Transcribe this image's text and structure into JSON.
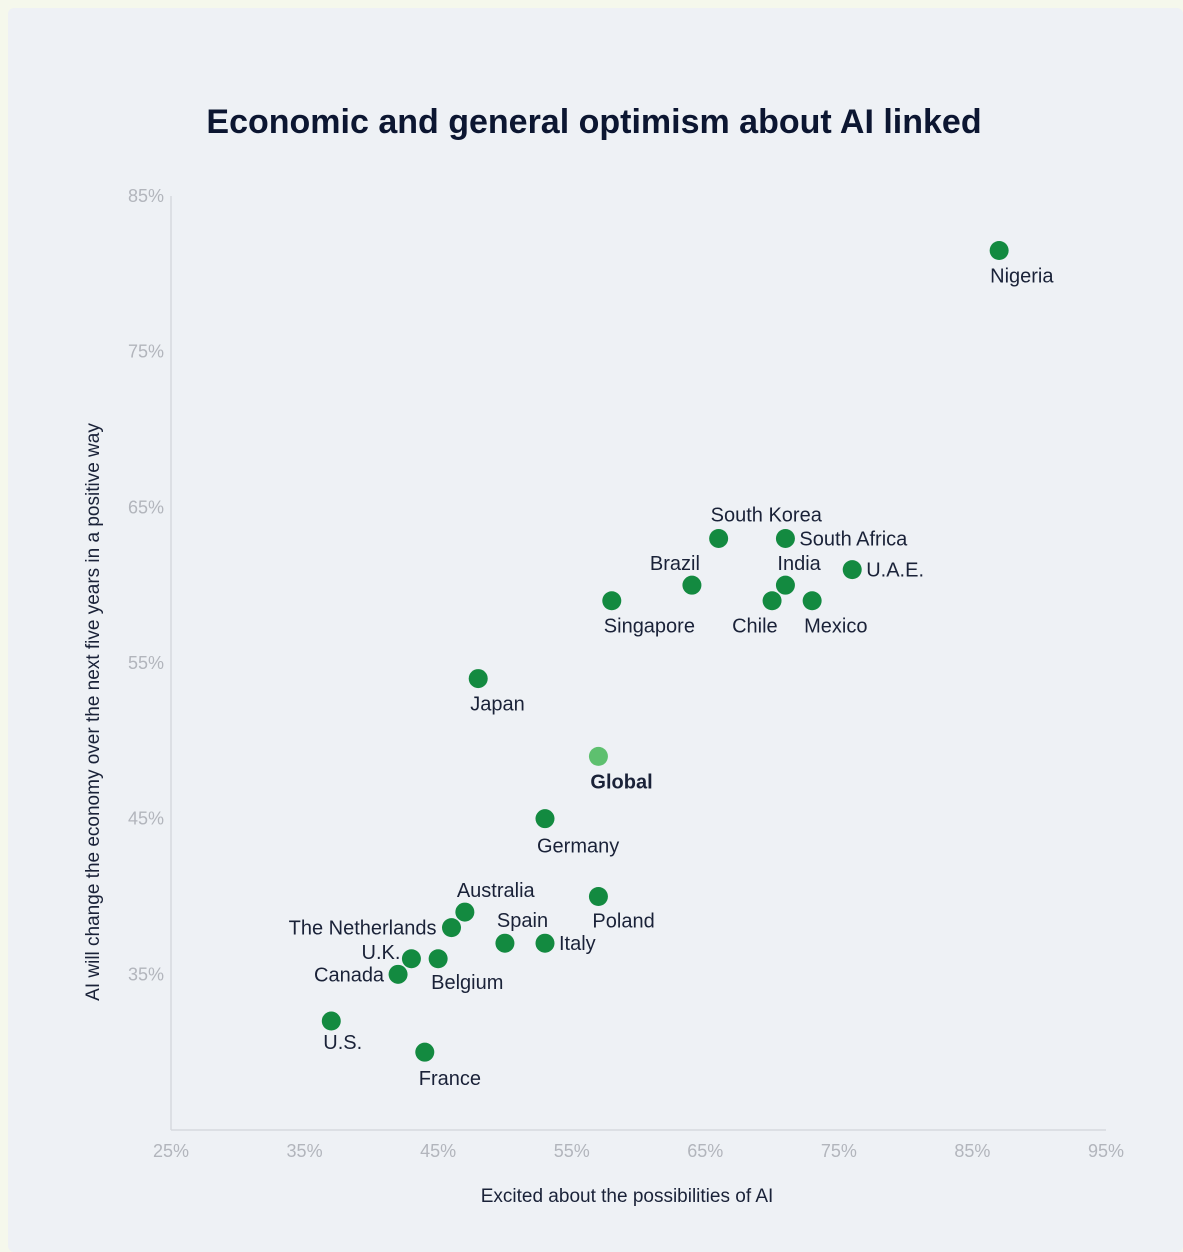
{
  "chart_data": {
    "type": "scatter",
    "title": "Economic and general optimism about AI linked",
    "xlabel": "Excited about the possibilities of AI",
    "ylabel": "AI will change the economy over the next five years in a positive way",
    "xlim": [
      25,
      95
    ],
    "ylim": [
      25,
      85
    ],
    "x_ticks": [
      "25%",
      "35%",
      "45%",
      "55%",
      "65%",
      "75%",
      "85%",
      "95%"
    ],
    "y_ticks": [
      "35%",
      "45%",
      "55%",
      "65%",
      "75%",
      "85%"
    ],
    "grid": false,
    "colors": {
      "point": "#138a40",
      "highlight": "#5ec06f",
      "axis": "#d6d9de"
    },
    "points": [
      {
        "label": "Nigeria",
        "x": 87,
        "y": 81.5
      },
      {
        "label": "South Korea",
        "x": 66,
        "y": 63
      },
      {
        "label": "South Africa",
        "x": 71,
        "y": 63
      },
      {
        "label": "U.A.E.",
        "x": 76,
        "y": 61
      },
      {
        "label": "Brazil",
        "x": 64,
        "y": 60
      },
      {
        "label": "India",
        "x": 71,
        "y": 60
      },
      {
        "label": "Singapore",
        "x": 58,
        "y": 59
      },
      {
        "label": "Chile",
        "x": 70,
        "y": 59
      },
      {
        "label": "Mexico",
        "x": 73,
        "y": 59
      },
      {
        "label": "Japan",
        "x": 48,
        "y": 54
      },
      {
        "label": "Global",
        "x": 57,
        "y": 49,
        "highlight": true
      },
      {
        "label": "Germany",
        "x": 53,
        "y": 45
      },
      {
        "label": "Poland",
        "x": 57,
        "y": 40
      },
      {
        "label": "Australia",
        "x": 47,
        "y": 39
      },
      {
        "label": "The Netherlands",
        "x": 46,
        "y": 38
      },
      {
        "label": "Spain",
        "x": 50,
        "y": 37
      },
      {
        "label": "Italy",
        "x": 53,
        "y": 37
      },
      {
        "label": "U.K.",
        "x": 43,
        "y": 36
      },
      {
        "label": "Belgium",
        "x": 45,
        "y": 36
      },
      {
        "label": "Canada",
        "x": 42,
        "y": 35
      },
      {
        "label": "U.S.",
        "x": 37,
        "y": 32
      },
      {
        "label": "France",
        "x": 44,
        "y": 30
      }
    ]
  }
}
